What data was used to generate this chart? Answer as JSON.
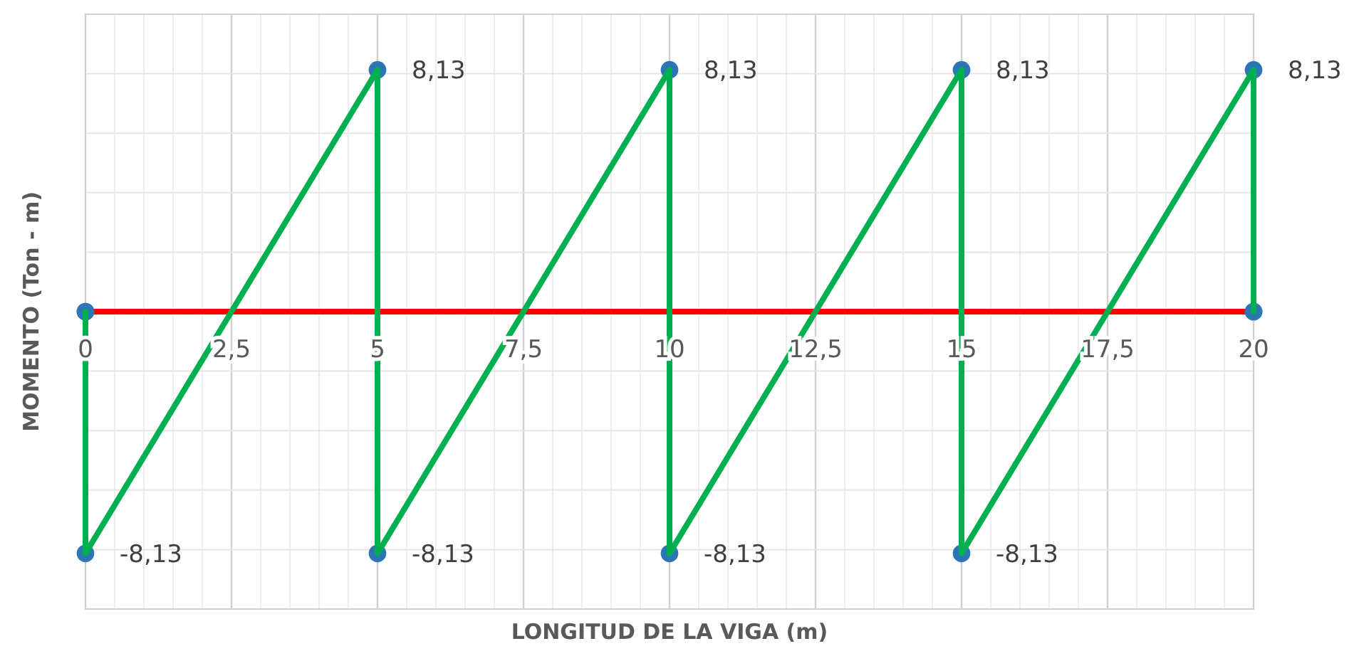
{
  "chart_data": {
    "type": "line",
    "xlabel": "LONGITUD DE LA VIGA (m)",
    "ylabel": "MOMENTO (Ton - m)",
    "xlim": [
      0,
      20
    ],
    "xticks": [
      {
        "value": 0,
        "label": "0"
      },
      {
        "value": 2.5,
        "label": "2,5"
      },
      {
        "value": 5,
        "label": "5"
      },
      {
        "value": 7.5,
        "label": "7,5"
      },
      {
        "value": 10,
        "label": "10"
      },
      {
        "value": 12.5,
        "label": "12,5"
      },
      {
        "value": 15,
        "label": "15"
      },
      {
        "value": 17.5,
        "label": "17,5"
      },
      {
        "value": 20,
        "label": "20"
      }
    ],
    "ylim": [
      -10,
      10
    ],
    "yticks": [
      {
        "value": -10,
        "label": null
      },
      {
        "value": -8,
        "label": null
      },
      {
        "value": -6,
        "label": null
      },
      {
        "value": -4,
        "label": null
      },
      {
        "value": -2,
        "label": null
      },
      {
        "value": 0,
        "label": null
      },
      {
        "value": 2,
        "label": null
      },
      {
        "value": 4,
        "label": null
      },
      {
        "value": 6,
        "label": null
      },
      {
        "value": 8,
        "label": null
      },
      {
        "value": 10,
        "label": null
      }
    ],
    "tick_labels": "x",
    "grid": true,
    "marker": "circle",
    "line_style": "solid",
    "series": [
      {
        "type": "line",
        "color": "#ff0000",
        "x": [
          0,
          20
        ],
        "values": [
          0,
          0
        ]
      },
      {
        "color": "#00b050",
        "x": [
          0,
          0,
          5,
          5,
          10,
          10,
          15,
          15,
          20,
          20
        ],
        "values": [
          0,
          -8.13,
          8.13,
          -8.13,
          8.13,
          -8.13,
          8.13,
          -8.13,
          8.13,
          0
        ],
        "value_labels": [
          null,
          "-8,13",
          "8,13",
          "-8,13",
          "8,13",
          "-8,13",
          "8,13",
          "-8,13",
          "8,13",
          null
        ]
      }
    ]
  }
}
